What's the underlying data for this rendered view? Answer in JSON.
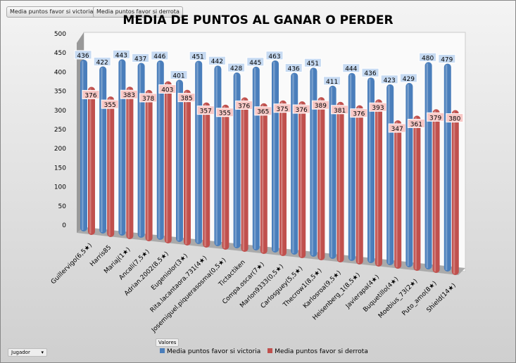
{
  "filters": {
    "field1": "Media puntos favor si victoria",
    "field2": "Media puntos favor si derrota",
    "values_label": "Valores",
    "row_field": "Jugador"
  },
  "chart_data": {
    "type": "bar",
    "title": "MEDIA DE PUNTOS AL GANAR O PERDER",
    "categories": [
      "Guillervigo(6,5★)",
      "Harris85",
      "Mariaj(1★)",
      "Ancali(7,5★)",
      "Adrian.2002(8,5★)",
      "Eugeniolor(3★)",
      "Rita.lacantaora.731(4★)",
      "Josemiguel.piquerasosma(0,5★)",
      "Tictactiken",
      "Compa.oscar(7★)",
      "Marlon9333(0,5★)",
      "Carlosguey(5,5★)",
      "Thecrow1(8,5★)",
      "Karlosroa(9,5★)",
      "Heisenberg_1(8,5★)",
      "Javierapa(4★)",
      "Buquetillo(4★)",
      "Moebius_73(2★)",
      "Puto_amo(8★)",
      "Shield(14★)"
    ],
    "series": [
      {
        "name": "Media puntos favor si victoria",
        "color": "#4a7ebb",
        "values": [
          436,
          422,
          443,
          437,
          446,
          401,
          451,
          442,
          428,
          445,
          463,
          436,
          451,
          411,
          444,
          436,
          423,
          429,
          480,
          479
        ]
      },
      {
        "name": "Media puntos favor si derrota",
        "color": "#c0504d",
        "values": [
          376,
          355,
          383,
          378,
          403,
          385,
          357,
          355,
          376,
          365,
          375,
          376,
          389,
          381,
          376,
          393,
          347,
          361,
          379,
          380
        ]
      }
    ],
    "yticks": [
      0,
      50,
      100,
      150,
      200,
      250,
      300,
      350,
      400,
      450,
      500
    ],
    "ylim": [
      0,
      500
    ],
    "legend": "bottom"
  }
}
